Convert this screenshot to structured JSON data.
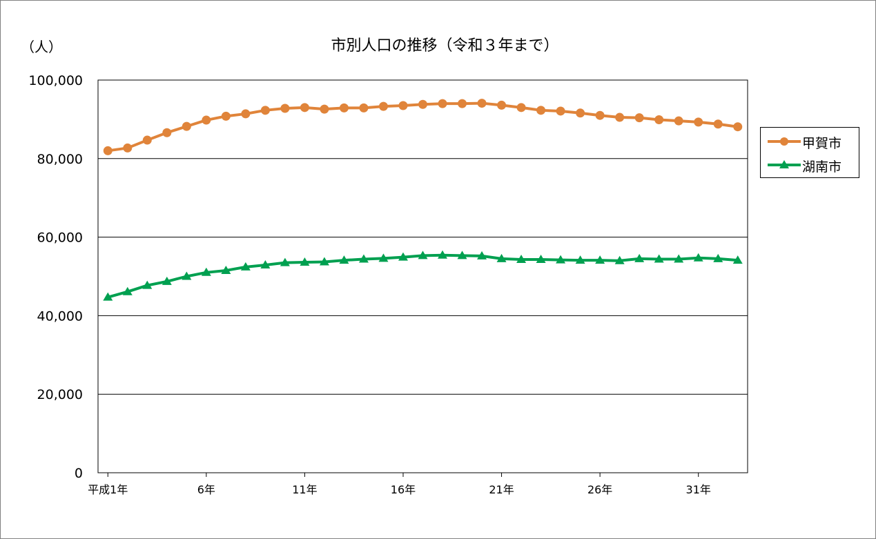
{
  "chart_data": {
    "type": "line",
    "title": "市別人口の推移（令和３年まで）",
    "ylabel": "（人）",
    "xlabel": "",
    "ylim": [
      0,
      100000
    ],
    "yticks": [
      0,
      20000,
      40000,
      60000,
      80000,
      100000
    ],
    "ytick_labels": [
      "0",
      "20,000",
      "40,000",
      "60,000",
      "80,000",
      "100,000"
    ],
    "x": [
      1,
      2,
      3,
      4,
      5,
      6,
      7,
      8,
      9,
      10,
      11,
      12,
      13,
      14,
      15,
      16,
      17,
      18,
      19,
      20,
      21,
      22,
      23,
      24,
      25,
      26,
      27,
      28,
      29,
      30,
      31,
      32,
      33
    ],
    "xtick_positions": [
      1,
      6,
      11,
      16,
      21,
      26,
      31
    ],
    "xtick_labels": [
      "平成1年",
      "6年",
      "11年",
      "16年",
      "21年",
      "26年",
      "31年"
    ],
    "grid": true,
    "legend_position": "right",
    "series": [
      {
        "name": "甲賀市",
        "color": "#E0843A",
        "marker": "circle",
        "values": [
          82000,
          82700,
          84700,
          86600,
          88200,
          89800,
          90800,
          91400,
          92300,
          92800,
          93000,
          92600,
          92900,
          92900,
          93300,
          93500,
          93800,
          94000,
          94000,
          94100,
          93600,
          93000,
          92300,
          92100,
          91600,
          91000,
          90500,
          90400,
          89900,
          89600,
          89300,
          88800,
          88100
        ]
      },
      {
        "name": "湖南市",
        "color": "#00A050",
        "marker": "triangle",
        "values": [
          44700,
          46100,
          47700,
          48700,
          50000,
          51000,
          51500,
          52400,
          52900,
          53500,
          53600,
          53700,
          54100,
          54400,
          54600,
          54900,
          55300,
          55400,
          55300,
          55200,
          54500,
          54300,
          54300,
          54200,
          54100,
          54100,
          54000,
          54500,
          54400,
          54400,
          54700,
          54500,
          54100
        ]
      }
    ]
  }
}
